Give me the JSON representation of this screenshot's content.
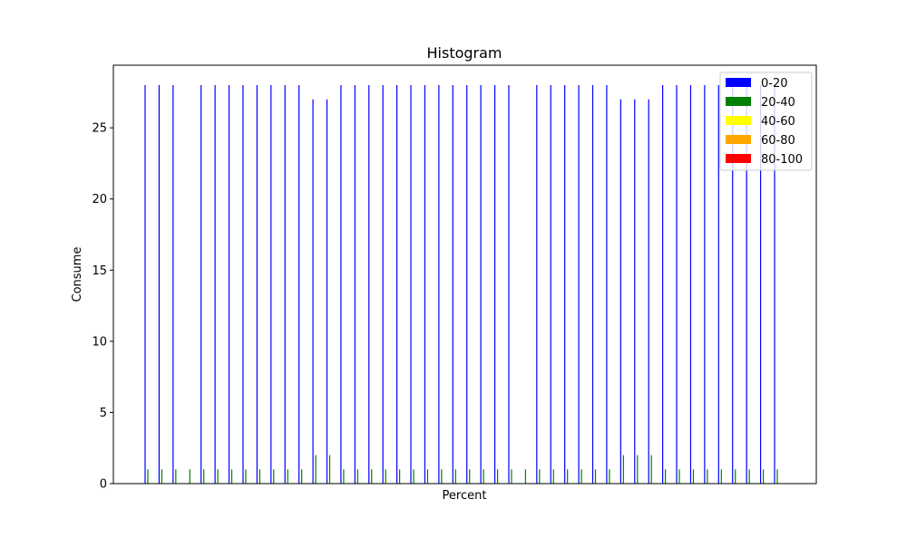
{
  "chart_data": {
    "type": "bar",
    "title": "Histogram",
    "xlabel": "Percent",
    "ylabel": "Consume",
    "ylim": [
      0,
      29.4
    ],
    "yticks": [
      0,
      5,
      10,
      15,
      20,
      25
    ],
    "ytick_labels": [
      "0",
      "5",
      "10",
      "15",
      "20",
      "25"
    ],
    "xticks_shown": false,
    "grid": false,
    "legend_position": "top-right",
    "series": [
      {
        "name": "0-20",
        "color": "#0000ff",
        "values": [
          28,
          28,
          28,
          0,
          28,
          28,
          28,
          28,
          28,
          28,
          28,
          28,
          27,
          27,
          28,
          28,
          28,
          28,
          28,
          28,
          28,
          28,
          28,
          28,
          28,
          28,
          28,
          0,
          28,
          28,
          28,
          28,
          28,
          28,
          27,
          27,
          27,
          28,
          28,
          28,
          28,
          28,
          28,
          28,
          28,
          28
        ]
      },
      {
        "name": "20-40",
        "color": "#008000",
        "values": [
          1,
          1,
          1,
          1,
          1,
          1,
          1,
          1,
          1,
          1,
          1,
          1,
          2,
          2,
          1,
          1,
          1,
          1,
          1,
          1,
          1,
          1,
          1,
          1,
          1,
          1,
          1,
          1,
          1,
          1,
          1,
          1,
          1,
          1,
          2,
          2,
          2,
          1,
          1,
          1,
          1,
          1,
          1,
          1,
          1,
          1
        ]
      },
      {
        "name": "40-60",
        "color": "#ffff00",
        "values": [
          0,
          0,
          0,
          0,
          0,
          0,
          0,
          0,
          0,
          0,
          0,
          0,
          0,
          0,
          0,
          0,
          0,
          0,
          0,
          0,
          0,
          0,
          0,
          0,
          0,
          0,
          0,
          0,
          0,
          0,
          0,
          0,
          0,
          0,
          0,
          0,
          0,
          0,
          0,
          0,
          0,
          0,
          0,
          0,
          0,
          0
        ]
      },
      {
        "name": "60-80",
        "color": "#ffa500",
        "values": [
          0,
          0,
          0,
          0,
          0,
          0,
          0,
          0,
          0,
          0,
          0,
          0,
          0,
          0,
          0,
          0,
          0,
          0,
          0,
          0,
          0,
          0,
          0,
          0,
          0,
          0,
          0,
          0,
          0,
          0,
          0,
          0,
          0,
          0,
          0,
          0,
          0,
          0,
          0,
          0,
          0,
          0,
          0,
          0,
          0,
          0
        ]
      },
      {
        "name": "80-100",
        "color": "#ff0000",
        "values": [
          0,
          0,
          0,
          0,
          0,
          0,
          0,
          0,
          0,
          0,
          0,
          0,
          0,
          0,
          0,
          0,
          0,
          0,
          0,
          0,
          0,
          0,
          0,
          0,
          0,
          0,
          0,
          0,
          0,
          0,
          0,
          0,
          0,
          0,
          0,
          0,
          0,
          0,
          0,
          0,
          0,
          0,
          0,
          0,
          0,
          0
        ]
      }
    ]
  }
}
